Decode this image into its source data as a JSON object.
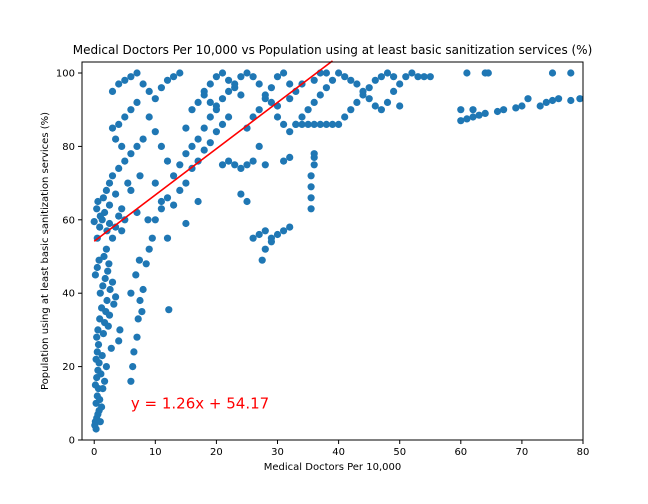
{
  "chart_data": {
    "type": "scatter",
    "title": "Medical Doctors Per 10,000 vs Population using at least basic sanitization services (%)",
    "xlabel": "Medical Doctors Per 10,000",
    "ylabel": "Population using at least basic sanitization services (%)",
    "xlim": [
      -2,
      80
    ],
    "ylim": [
      0,
      103
    ],
    "xticks": [
      0,
      10,
      20,
      30,
      40,
      50,
      60,
      70,
      80
    ],
    "yticks": [
      0,
      20,
      40,
      60,
      80,
      100
    ],
    "grid": false,
    "point_color": "#1f77b4",
    "regression": {
      "slope": 1.26,
      "intercept": 54.17,
      "x_range": [
        0,
        39
      ],
      "color": "#ff0000",
      "equation": "y = 1.26x + 54.17",
      "equation_position": [
        6,
        10
      ]
    },
    "series": [
      {
        "points": [
          [
            0.2,
            5
          ],
          [
            0.4,
            6
          ],
          [
            0.6,
            7
          ],
          [
            0.8,
            8
          ],
          [
            1,
            5
          ],
          [
            1.2,
            9
          ],
          [
            0.3,
            10
          ],
          [
            0.5,
            12
          ],
          [
            0.7,
            14
          ],
          [
            0.9,
            11
          ],
          [
            0.2,
            15
          ],
          [
            0.4,
            17
          ],
          [
            0.6,
            19
          ],
          [
            0.8,
            21
          ],
          [
            1.1,
            18
          ],
          [
            0.3,
            22
          ],
          [
            0.5,
            24
          ],
          [
            0.7,
            26
          ],
          [
            1.3,
            23
          ],
          [
            0.4,
            28
          ],
          [
            0.6,
            30
          ],
          [
            0.9,
            33
          ],
          [
            1.2,
            36
          ],
          [
            1.5,
            29
          ],
          [
            1.7,
            32
          ],
          [
            1.9,
            35
          ],
          [
            2.1,
            38
          ],
          [
            2.3,
            31
          ],
          [
            2.5,
            34
          ],
          [
            1,
            40
          ],
          [
            1.4,
            42
          ],
          [
            1.8,
            44
          ],
          [
            2.2,
            46
          ],
          [
            2.6,
            41
          ],
          [
            3,
            43
          ],
          [
            0.2,
            45
          ],
          [
            0.5,
            47
          ],
          [
            0.8,
            49
          ],
          [
            1.6,
            50
          ],
          [
            2,
            52
          ],
          [
            2.4,
            48
          ],
          [
            3.2,
            37
          ],
          [
            3.5,
            39
          ],
          [
            4,
            27
          ],
          [
            4.2,
            30
          ],
          [
            0.3,
            3
          ],
          [
            0.1,
            4
          ],
          [
            1.4,
            14
          ],
          [
            1.7,
            16
          ],
          [
            2,
            20
          ],
          [
            2.8,
            25
          ],
          [
            0.5,
            55
          ],
          [
            0.9,
            58
          ],
          [
            1.3,
            60
          ],
          [
            1.7,
            62
          ],
          [
            2.1,
            57
          ],
          [
            2.5,
            59
          ],
          [
            0.4,
            63
          ],
          [
            1,
            61
          ],
          [
            0,
            59.5
          ],
          [
            3,
            55
          ],
          [
            3.5,
            58
          ],
          [
            4,
            61
          ],
          [
            4.5,
            57
          ],
          [
            5,
            60
          ],
          [
            0.6,
            65
          ],
          [
            1.5,
            66
          ],
          [
            2.5,
            64
          ],
          [
            3.5,
            67
          ],
          [
            4.5,
            63
          ],
          [
            6,
            16
          ],
          [
            6.3,
            20
          ],
          [
            6.5,
            24
          ],
          [
            7,
            28
          ],
          [
            7.2,
            33
          ],
          [
            7.5,
            38
          ],
          [
            6,
            40
          ],
          [
            6.8,
            45
          ],
          [
            7.4,
            49
          ],
          [
            7.8,
            35
          ],
          [
            8,
            41
          ],
          [
            8.5,
            48
          ],
          [
            9,
            52
          ],
          [
            9.5,
            55
          ],
          [
            8.8,
            60
          ],
          [
            7,
            62
          ],
          [
            6,
            68
          ],
          [
            5.5,
            70
          ],
          [
            7.5,
            72
          ],
          [
            4,
            74
          ],
          [
            3,
            72
          ],
          [
            2.5,
            70
          ],
          [
            2,
            68
          ],
          [
            5,
            76
          ],
          [
            6,
            78
          ],
          [
            7,
            80
          ],
          [
            8,
            82
          ],
          [
            4.5,
            80
          ],
          [
            3.5,
            82
          ],
          [
            3,
            85
          ],
          [
            4,
            86
          ],
          [
            5,
            88
          ],
          [
            6,
            90
          ],
          [
            7,
            92
          ],
          [
            3,
            95
          ],
          [
            4,
            97
          ],
          [
            5,
            98
          ],
          [
            6,
            99
          ],
          [
            7,
            100
          ],
          [
            8,
            97
          ],
          [
            9,
            95
          ],
          [
            10,
            93
          ],
          [
            11,
            96
          ],
          [
            12,
            98
          ],
          [
            13,
            99
          ],
          [
            14,
            100
          ],
          [
            9,
            88
          ],
          [
            10,
            84
          ],
          [
            11,
            80
          ],
          [
            12,
            76
          ],
          [
            10,
            70
          ],
          [
            11,
            65
          ],
          [
            10,
            60
          ],
          [
            12,
            55
          ],
          [
            12.2,
            35.5
          ],
          [
            11,
            63
          ],
          [
            12,
            66
          ],
          [
            13,
            64
          ],
          [
            14,
            68
          ],
          [
            15,
            70
          ],
          [
            13,
            72
          ],
          [
            14,
            75
          ],
          [
            15,
            78
          ],
          [
            16,
            80
          ],
          [
            17,
            82
          ],
          [
            18,
            85
          ],
          [
            19,
            88
          ],
          [
            20,
            90
          ],
          [
            16,
            74
          ],
          [
            17,
            76
          ],
          [
            18,
            79
          ],
          [
            19,
            81
          ],
          [
            20,
            84
          ],
          [
            21,
            86
          ],
          [
            22,
            88
          ],
          [
            15,
            85
          ],
          [
            16,
            90
          ],
          [
            17,
            92
          ],
          [
            18,
            95
          ],
          [
            19,
            97
          ],
          [
            20,
            99
          ],
          [
            21,
            100
          ],
          [
            22,
            98
          ],
          [
            23,
            96
          ],
          [
            24,
            94
          ],
          [
            21,
            75
          ],
          [
            22,
            76
          ],
          [
            23,
            75
          ],
          [
            24,
            74
          ],
          [
            25,
            75
          ],
          [
            26,
            76
          ],
          [
            27,
            80
          ],
          [
            25,
            85
          ],
          [
            26,
            88
          ],
          [
            27,
            90
          ],
          [
            28,
            93
          ],
          [
            29,
            96
          ],
          [
            30,
            99
          ],
          [
            31,
            100
          ],
          [
            32,
            97
          ],
          [
            30,
            88
          ],
          [
            31,
            86
          ],
          [
            32,
            84
          ],
          [
            33,
            86
          ],
          [
            34,
            88
          ],
          [
            35,
            90
          ],
          [
            36,
            92
          ],
          [
            37,
            94
          ],
          [
            38,
            96
          ],
          [
            39,
            98
          ],
          [
            28,
            75
          ],
          [
            31,
            76
          ],
          [
            32,
            77
          ],
          [
            36,
            75
          ],
          [
            36,
            77
          ],
          [
            36,
            78
          ],
          [
            35.5,
            72
          ],
          [
            35.5,
            69
          ],
          [
            35.5,
            66
          ],
          [
            35.5,
            63
          ],
          [
            26,
            55
          ],
          [
            27,
            56
          ],
          [
            28,
            57
          ],
          [
            29,
            55
          ],
          [
            30,
            56
          ],
          [
            31,
            57
          ],
          [
            32,
            58
          ],
          [
            28,
            52
          ],
          [
            29,
            54
          ],
          [
            27.5,
            49
          ],
          [
            17,
            65
          ],
          [
            15,
            59
          ],
          [
            25,
            65
          ],
          [
            24,
            67
          ],
          [
            33,
            86
          ],
          [
            34,
            86
          ],
          [
            35,
            86
          ],
          [
            36,
            86
          ],
          [
            37,
            86
          ],
          [
            38,
            86
          ],
          [
            39,
            86
          ],
          [
            40,
            86
          ],
          [
            41,
            88
          ],
          [
            42,
            90
          ],
          [
            43,
            92
          ],
          [
            44,
            94
          ],
          [
            45,
            96
          ],
          [
            46,
            98
          ],
          [
            47,
            99
          ],
          [
            48,
            100
          ],
          [
            40,
            100
          ],
          [
            41,
            99
          ],
          [
            42,
            98
          ],
          [
            43,
            97
          ],
          [
            44,
            95
          ],
          [
            45,
            93
          ],
          [
            46,
            91
          ],
          [
            47,
            90
          ],
          [
            48,
            92
          ],
          [
            49,
            95
          ],
          [
            50,
            97
          ],
          [
            51,
            99
          ],
          [
            52,
            100
          ],
          [
            53,
            99
          ],
          [
            54,
            99
          ],
          [
            50,
            91
          ],
          [
            49,
            99
          ],
          [
            38,
            100
          ],
          [
            36,
            98
          ],
          [
            34,
            97
          ],
          [
            33,
            95
          ],
          [
            32,
            93
          ],
          [
            30,
            91
          ],
          [
            29,
            92
          ],
          [
            28,
            94
          ],
          [
            27,
            97
          ],
          [
            26,
            99
          ],
          [
            25,
            100
          ],
          [
            24,
            99
          ],
          [
            23,
            97
          ],
          [
            22,
            95
          ],
          [
            21,
            93
          ],
          [
            20,
            91
          ],
          [
            19,
            92
          ],
          [
            18,
            94
          ],
          [
            60,
            87
          ],
          [
            61,
            87.5
          ],
          [
            62,
            88
          ],
          [
            63,
            88.5
          ],
          [
            64,
            89
          ],
          [
            60,
            90
          ],
          [
            62,
            90
          ],
          [
            61,
            100
          ],
          [
            64,
            100
          ],
          [
            66,
            89.5
          ],
          [
            67,
            90
          ],
          [
            69,
            90.5
          ],
          [
            70,
            91
          ],
          [
            71,
            93
          ],
          [
            73,
            91
          ],
          [
            74,
            92
          ],
          [
            75,
            92.5
          ],
          [
            76,
            93
          ],
          [
            78,
            92.5
          ],
          [
            79.5,
            93
          ],
          [
            75,
            100
          ],
          [
            78,
            100
          ],
          [
            64.5,
            100
          ],
          [
            55,
            99
          ],
          [
            37,
            100
          ]
        ]
      }
    ]
  }
}
